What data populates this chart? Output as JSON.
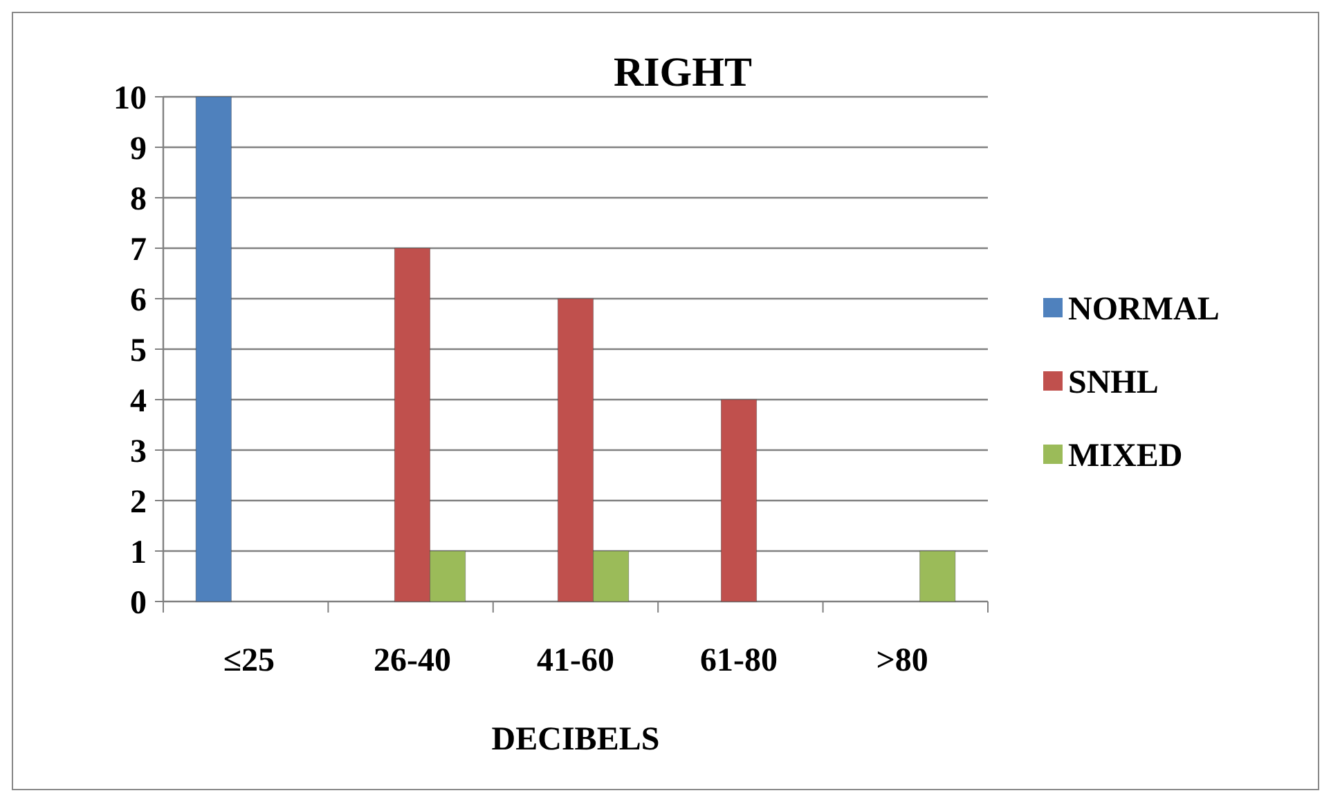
{
  "chart_data": {
    "type": "bar",
    "title": "RIGHT",
    "xlabel": "DECIBELS",
    "categories": [
      "≤25",
      "26-40",
      "41-60",
      "61-80",
      ">80"
    ],
    "series": [
      {
        "name": "NORMAL",
        "color": "#4f81bd",
        "values": [
          10,
          0,
          0,
          0,
          0
        ]
      },
      {
        "name": "SNHL",
        "color": "#c0504d",
        "values": [
          0,
          7,
          6,
          4,
          0
        ]
      },
      {
        "name": "MIXED",
        "color": "#9bbb59",
        "values": [
          0,
          1,
          1,
          0,
          1
        ]
      }
    ],
    "ylim": [
      0,
      10
    ],
    "yticks": [
      0,
      1,
      2,
      3,
      4,
      5,
      6,
      7,
      8,
      9,
      10
    ],
    "grid": "y",
    "legend": "right"
  }
}
